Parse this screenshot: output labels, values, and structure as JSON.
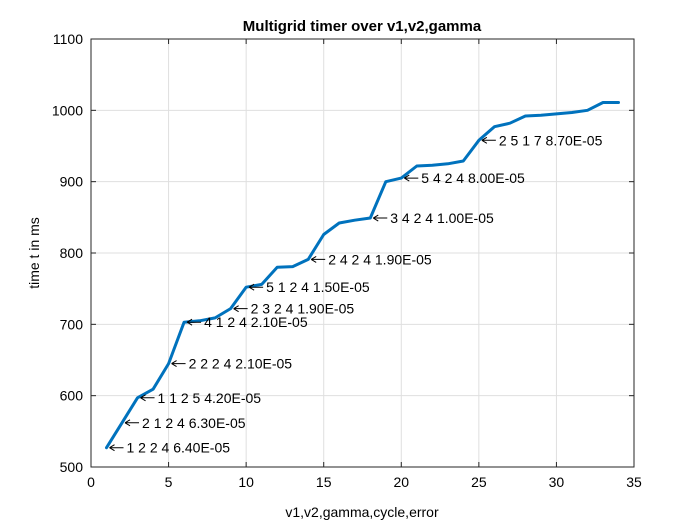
{
  "chart_data": {
    "type": "line",
    "title": "Multigrid timer over v1,v2,gamma",
    "xlabel": "v1,v2,gamma,cycle,error",
    "ylabel": "time t in ms",
    "xlim": [
      0,
      35
    ],
    "ylim": [
      500,
      1100
    ],
    "xticks": [
      0,
      5,
      10,
      15,
      20,
      25,
      30,
      35
    ],
    "yticks": [
      500,
      600,
      700,
      800,
      900,
      1000,
      1100
    ],
    "grid": true,
    "line_color": "#0072BD",
    "series": [
      {
        "x": [
          1,
          2,
          3,
          4,
          5,
          6,
          7,
          8,
          9,
          10,
          11,
          12,
          13,
          14,
          15,
          16,
          17,
          18,
          19,
          20,
          21,
          22,
          23,
          24,
          25,
          26,
          27,
          28,
          29,
          30,
          31,
          32,
          33,
          34
        ],
        "values": [
          527,
          562,
          597,
          609,
          645,
          703,
          705,
          709,
          722,
          752,
          756,
          780,
          781,
          791,
          826,
          842,
          846,
          849,
          900,
          905,
          922,
          923,
          925,
          929,
          958,
          977,
          982,
          992,
          993,
          995,
          997,
          1000,
          1011,
          1011
        ]
      }
    ],
    "annotations": [
      {
        "x": 1,
        "y": 527,
        "text": "1 2 2 4 6.40E-05"
      },
      {
        "x": 2,
        "y": 562,
        "text": "2 1 2 4 6.30E-05"
      },
      {
        "x": 3,
        "y": 597,
        "text": "1 1 2 5 4.20E-05"
      },
      {
        "x": 5,
        "y": 645,
        "text": "2 2 2 4 2.10E-05"
      },
      {
        "x": 6,
        "y": 703,
        "text": "4 1 2 4 2.10E-05"
      },
      {
        "x": 9,
        "y": 722,
        "text": "2 3 2 4 1.90E-05"
      },
      {
        "x": 10,
        "y": 752,
        "text": "5 1 2 4 1.50E-05"
      },
      {
        "x": 14,
        "y": 791,
        "text": "2 4 2 4 1.90E-05"
      },
      {
        "x": 18,
        "y": 849,
        "text": "3 4 2 4 1.00E-05"
      },
      {
        "x": 20,
        "y": 905,
        "text": "5 4 2 4 8.00E-05"
      },
      {
        "x": 25,
        "y": 958,
        "text": "2 5 1 7 8.70E-05"
      }
    ]
  }
}
